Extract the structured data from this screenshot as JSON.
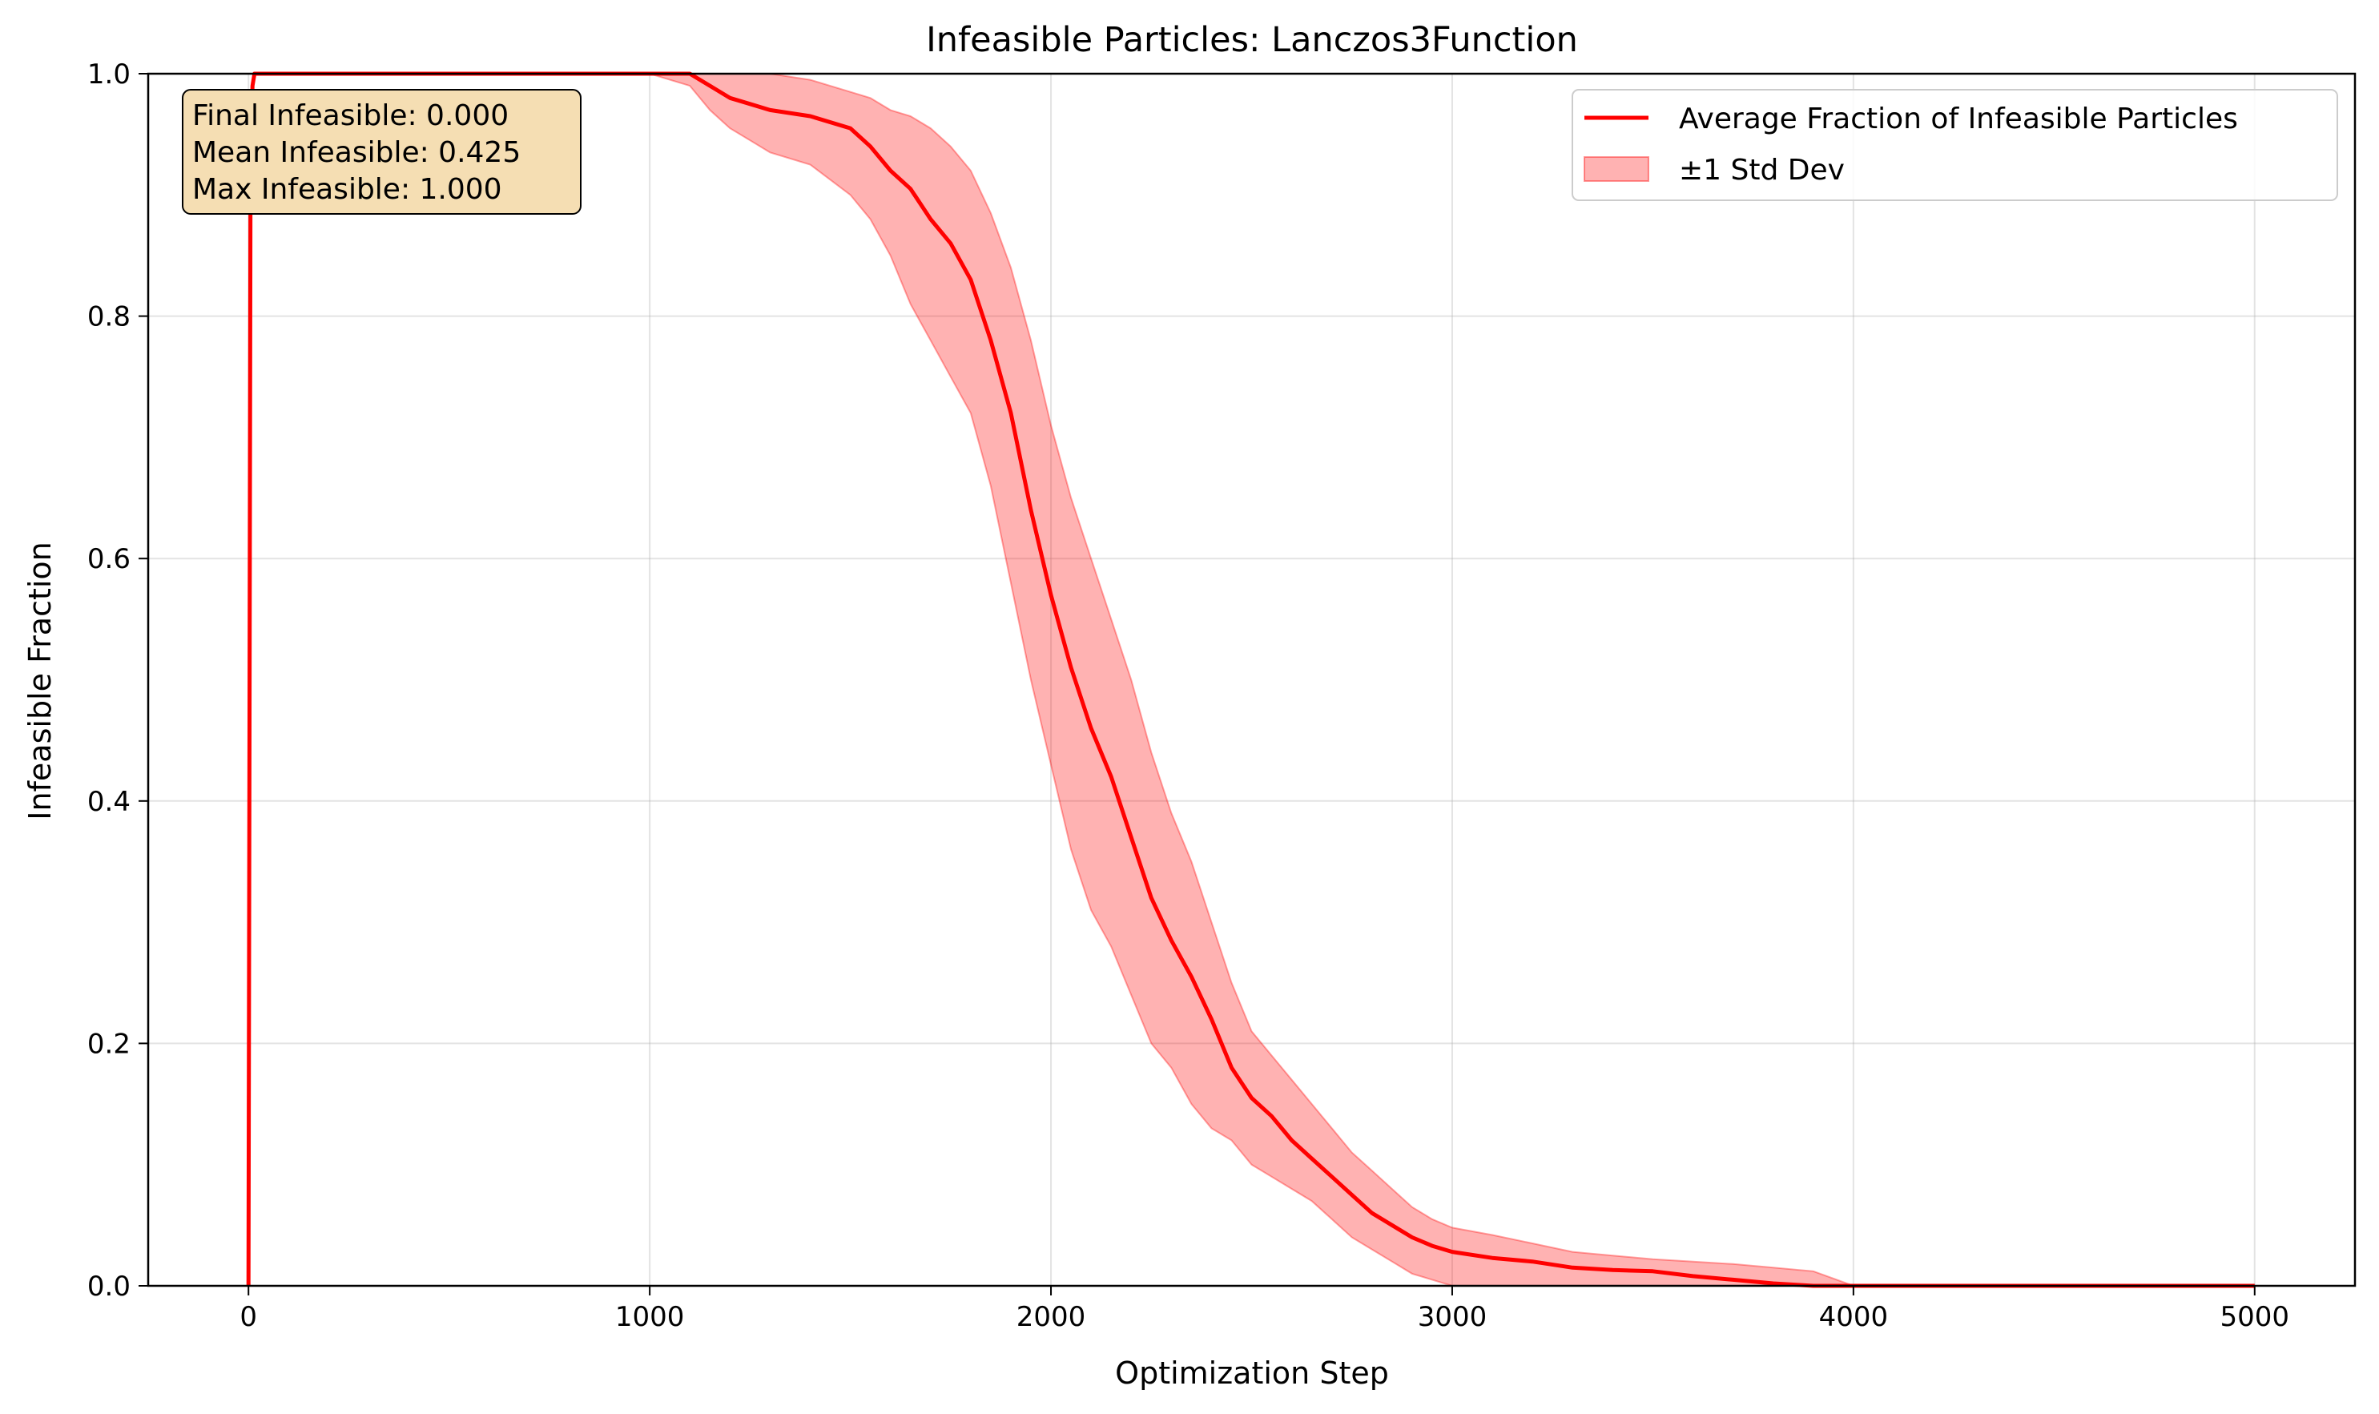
{
  "chart_data": {
    "type": "line",
    "title": "Infeasible Particles: Lanczos3Function",
    "xlabel": "Optimization Step",
    "ylabel": "Infeasible Fraction",
    "xlim": [
      -250,
      5250
    ],
    "ylim": [
      0.0,
      1.0
    ],
    "xticks": [
      0,
      1000,
      2000,
      3000,
      4000,
      5000
    ],
    "xtick_labels": [
      "0",
      "1000",
      "2000",
      "3000",
      "4000",
      "5000"
    ],
    "yticks": [
      0.0,
      0.2,
      0.4,
      0.6,
      0.8,
      1.0
    ],
    "ytick_labels": [
      "0.0",
      "0.2",
      "0.4",
      "0.6",
      "0.8",
      "1.0"
    ],
    "grid": true,
    "legend_position": "upper right",
    "series": [
      {
        "name": "Average Fraction of Infeasible Particles",
        "color": "#ff0000",
        "x": [
          0,
          5,
          10,
          15,
          20,
          1000,
          1100,
          1150,
          1200,
          1250,
          1300,
          1400,
          1500,
          1550,
          1600,
          1650,
          1700,
          1750,
          1800,
          1850,
          1900,
          1950,
          2000,
          2050,
          2100,
          2150,
          2200,
          2250,
          2300,
          2350,
          2400,
          2450,
          2500,
          2550,
          2600,
          2650,
          2700,
          2750,
          2800,
          2850,
          2900,
          2950,
          3000,
          3100,
          3200,
          3300,
          3400,
          3500,
          3600,
          3700,
          3800,
          3900,
          4000,
          5000
        ],
        "y": [
          0.0,
          0.9,
          0.99,
          1.0,
          1.0,
          1.0,
          1.0,
          0.99,
          0.98,
          0.975,
          0.97,
          0.965,
          0.955,
          0.94,
          0.92,
          0.905,
          0.88,
          0.86,
          0.83,
          0.78,
          0.72,
          0.64,
          0.57,
          0.51,
          0.46,
          0.42,
          0.37,
          0.32,
          0.285,
          0.255,
          0.22,
          0.18,
          0.155,
          0.14,
          0.12,
          0.105,
          0.09,
          0.075,
          0.06,
          0.05,
          0.04,
          0.033,
          0.028,
          0.023,
          0.02,
          0.015,
          0.013,
          0.012,
          0.008,
          0.005,
          0.002,
          0.0,
          0.0,
          0.0
        ]
      },
      {
        "name": "±1 Std Dev",
        "type": "band",
        "color": "#ff0000",
        "alpha": 0.3,
        "x": [
          1000,
          1100,
          1150,
          1200,
          1250,
          1300,
          1400,
          1500,
          1550,
          1600,
          1650,
          1700,
          1750,
          1800,
          1850,
          1900,
          1950,
          2000,
          2050,
          2100,
          2150,
          2200,
          2250,
          2300,
          2350,
          2400,
          2450,
          2500,
          2550,
          2600,
          2650,
          2700,
          2750,
          2800,
          2850,
          2900,
          2950,
          3000,
          3100,
          3200,
          3300,
          3400,
          3500,
          3600,
          3700,
          3800,
          3900,
          4000,
          5000
        ],
        "lower": [
          1.0,
          0.99,
          0.97,
          0.955,
          0.945,
          0.935,
          0.925,
          0.9,
          0.88,
          0.85,
          0.81,
          0.78,
          0.75,
          0.72,
          0.66,
          0.58,
          0.5,
          0.43,
          0.36,
          0.31,
          0.28,
          0.24,
          0.2,
          0.18,
          0.15,
          0.13,
          0.12,
          0.1,
          0.09,
          0.08,
          0.07,
          0.055,
          0.04,
          0.03,
          0.02,
          0.01,
          0.005,
          0.0,
          0.0,
          0.0,
          0.0,
          0.0,
          0.0,
          0.0,
          0.0,
          0.0,
          0.0,
          0.0,
          0.0
        ],
        "upper": [
          1.0,
          1.0,
          1.0,
          1.0,
          1.0,
          1.0,
          0.995,
          0.985,
          0.98,
          0.97,
          0.965,
          0.955,
          0.94,
          0.92,
          0.885,
          0.84,
          0.78,
          0.71,
          0.65,
          0.6,
          0.55,
          0.5,
          0.44,
          0.39,
          0.35,
          0.3,
          0.25,
          0.21,
          0.19,
          0.17,
          0.15,
          0.13,
          0.11,
          0.095,
          0.08,
          0.065,
          0.055,
          0.048,
          0.042,
          0.035,
          0.028,
          0.025,
          0.022,
          0.02,
          0.018,
          0.015,
          0.012,
          0.0,
          0.0
        ]
      }
    ],
    "annotation_lines": [
      "Final Infeasible: 0.000",
      "Mean Infeasible: 0.425",
      "Max Infeasible: 1.000"
    ],
    "annotation_box_color": "#f5deb3"
  }
}
